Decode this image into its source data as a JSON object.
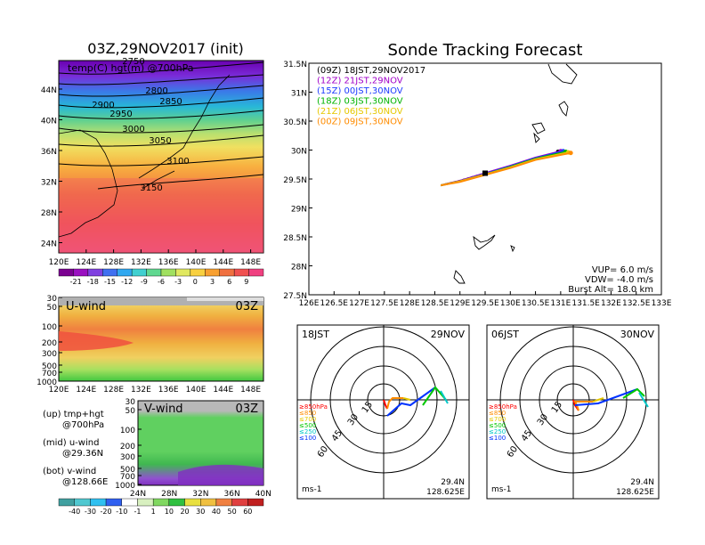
{
  "left_top": {
    "title": "03Z,29NOV2017 (init)",
    "subtitle": "temp(C) hgt(m) @700hPa",
    "lat_ticks": [
      "44N",
      "40N",
      "36N",
      "32N",
      "28N",
      "24N"
    ],
    "lon_ticks": [
      "120E",
      "124E",
      "128E",
      "132E",
      "136E",
      "140E",
      "144E",
      "148E"
    ],
    "contour_labels": [
      "2750",
      "2800",
      "2850",
      "2900",
      "2950",
      "3000",
      "3050",
      "3100",
      "3150"
    ],
    "colorbar_ticks": [
      "-21",
      "-18",
      "-15",
      "-12",
      "-9",
      "-6",
      "-3",
      "0",
      "3",
      "6",
      "9"
    ]
  },
  "left_mid": {
    "label": "U-wind",
    "time": "03Z",
    "p_ticks": [
      "30",
      "50",
      "100",
      "200",
      "300",
      "500",
      "700",
      "1000"
    ],
    "lon_ticks": [
      "120E",
      "124E",
      "128E",
      "132E",
      "136E",
      "140E",
      "144E",
      "148E"
    ]
  },
  "left_bot": {
    "label": "V-wind",
    "time": "03Z",
    "p_ticks": [
      "30",
      "50",
      "100",
      "200",
      "300",
      "500",
      "700",
      "1000"
    ],
    "lat_ticks": [
      "24N",
      "28N",
      "32N",
      "36N",
      "40N"
    ],
    "colorbar_ticks": [
      "-40",
      "-30",
      "-20",
      "-10",
      "-1",
      "1",
      "10",
      "20",
      "30",
      "40",
      "50",
      "60"
    ]
  },
  "legend_text": {
    "l1a": "(up) tmp+hgt",
    "l1b": "@700hPa",
    "l2a": "(mid) u-wind",
    "l2b": "@29.36N",
    "l3a": "(bot) v-wind",
    "l3b": "@128.66E"
  },
  "tracking": {
    "title": "Sonde Tracking Forecast",
    "lat_ticks": [
      "31.5N",
      "31N",
      "30.5N",
      "30N",
      "29.5N",
      "29N",
      "28.5N",
      "28N",
      "27.5N"
    ],
    "lon_ticks": [
      "126E",
      "126.5E",
      "127E",
      "127.5E",
      "128E",
      "128.5E",
      "129E",
      "129.5E",
      "130E",
      "130.5E",
      "131E",
      "131.5E",
      "132E",
      "132.5E",
      "133E"
    ],
    "vup": "VUP= 6.0 m/s",
    "vdw": "VDW= -4.0 m/s",
    "burst": "Burst Alt= 18.0 km"
  },
  "chart_data": {
    "type": "line",
    "title": "Sonde Tracking Forecast",
    "xlim": [
      126,
      133
    ],
    "ylim": [
      27.5,
      31.5
    ],
    "series": [
      {
        "name": "(09Z) 18JST,29NOV2017",
        "color": "#000000",
        "x": [
          128.62,
          129.0,
          129.5,
          130.0,
          130.5,
          130.95
        ],
        "y": [
          29.39,
          29.47,
          29.6,
          29.72,
          29.85,
          29.97
        ]
      },
      {
        "name": "(12Z) 21JST,29NOV",
        "color": "#a000c8",
        "x": [
          128.62,
          129.0,
          129.5,
          130.0,
          130.5,
          131.0
        ],
        "y": [
          29.39,
          29.47,
          29.6,
          29.73,
          29.87,
          29.98
        ]
      },
      {
        "name": "(15Z) 00JST,30NOV",
        "color": "#1e3cff",
        "x": [
          128.62,
          129.0,
          129.5,
          130.0,
          130.5,
          131.05
        ],
        "y": [
          29.39,
          29.46,
          29.59,
          29.72,
          29.86,
          29.98
        ]
      },
      {
        "name": "(18Z) 03JST,30NOV",
        "color": "#00b400",
        "x": [
          128.62,
          129.0,
          129.5,
          130.0,
          130.5,
          131.1
        ],
        "y": [
          29.39,
          29.46,
          29.58,
          29.71,
          29.85,
          29.97
        ]
      },
      {
        "name": "(21Z) 06JST,30NOV",
        "color": "#e6c800",
        "x": [
          128.62,
          129.0,
          129.5,
          130.0,
          130.5,
          131.15
        ],
        "y": [
          29.39,
          29.46,
          29.58,
          29.7,
          29.84,
          29.96
        ]
      },
      {
        "name": "(00Z) 09JST,30NOV",
        "color": "#ff8c00",
        "x": [
          128.62,
          129.0,
          129.5,
          130.0,
          130.5,
          131.2
        ],
        "y": [
          29.39,
          29.45,
          29.57,
          29.69,
          29.83,
          29.95
        ]
      }
    ]
  },
  "hodo1": {
    "time": "18JST",
    "date": "29NOV",
    "lat": "29.4N",
    "lon": "128.625E",
    "unit": "ms-1",
    "rings": [
      "15",
      "30",
      "45",
      "60"
    ],
    "levels": [
      {
        "t": "≥850hPa",
        "c": "#ff0000"
      },
      {
        "t": "≤850",
        "c": "#ff8c00"
      },
      {
        "t": "≤700",
        "c": "#e6c800"
      },
      {
        "t": "≤500",
        "c": "#00c800"
      },
      {
        "t": "≤250",
        "c": "#00c8c8"
      },
      {
        "t": "≤100",
        "c": "#0032ff"
      }
    ]
  },
  "hodo2": {
    "time": "06JST",
    "date": "30NOV",
    "lat": "29.4N",
    "lon": "128.625E",
    "unit": "ms-1",
    "rings": [
      "15",
      "30",
      "45",
      "60"
    ],
    "levels": [
      {
        "t": "≥850hPa",
        "c": "#ff0000"
      },
      {
        "t": "≤850",
        "c": "#ff8c00"
      },
      {
        "t": "≤700",
        "c": "#e6c800"
      },
      {
        "t": "≤500",
        "c": "#00c800"
      },
      {
        "t": "≤250",
        "c": "#00c8c8"
      },
      {
        "t": "≤100",
        "c": "#0032ff"
      }
    ]
  }
}
